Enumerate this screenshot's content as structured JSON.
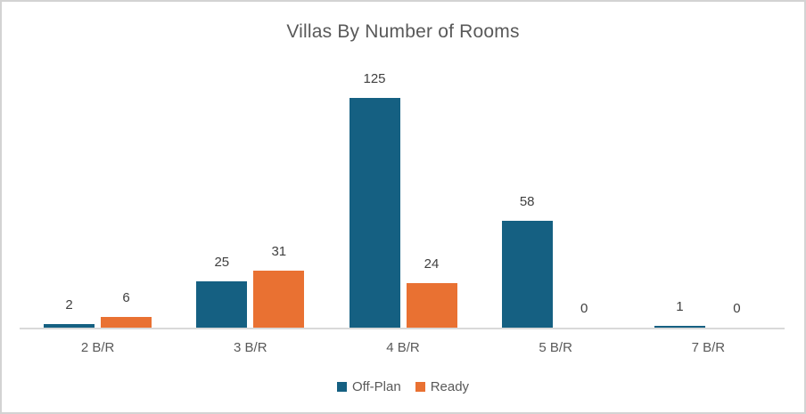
{
  "chart_data": {
    "type": "bar",
    "title": "Villas By Number of Rooms",
    "categories": [
      "2 B/R",
      "3 B/R",
      "4 B/R",
      "5 B/R",
      "7 B/R"
    ],
    "series": [
      {
        "name": "Off-Plan",
        "color": "#156082",
        "values": [
          2,
          25,
          125,
          58,
          1
        ]
      },
      {
        "name": "Ready",
        "color": "#E97132",
        "values": [
          6,
          31,
          24,
          0,
          0
        ]
      }
    ],
    "value_labels_shown": true,
    "legend_position": "bottom",
    "grid": false,
    "xlabel": "",
    "ylabel": "",
    "ylim": [
      0,
      130
    ]
  },
  "colors": {
    "series_off_plan": "#156082",
    "series_ready": "#E97132",
    "title_text": "#595959",
    "data_label_text": "#404040",
    "axis_text": "#595959",
    "axis_line": "#D9D9D9",
    "chart_border": "#D3D3D3",
    "background": "#FFFFFF"
  }
}
